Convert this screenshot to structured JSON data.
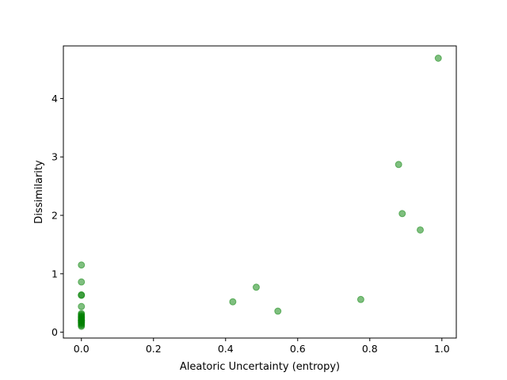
{
  "chart_data": {
    "type": "scatter",
    "title": "",
    "xlabel": "Aleatoric Uncertainty (entropy)",
    "ylabel": "Dissimilarity",
    "xlim": [
      -0.05,
      1.04
    ],
    "ylim": [
      -0.1,
      4.9
    ],
    "x_ticks": [
      0.0,
      0.2,
      0.4,
      0.6,
      0.8,
      1.0
    ],
    "x_tick_labels": [
      "0.0",
      "0.2",
      "0.4",
      "0.6",
      "0.8",
      "1.0"
    ],
    "y_ticks": [
      0,
      1,
      2,
      3,
      4
    ],
    "y_tick_labels": [
      "0",
      "1",
      "2",
      "3",
      "4"
    ],
    "grid": false,
    "marker_color": "#008000",
    "marker_alpha": 0.5,
    "series": [
      {
        "x": [
          0.0,
          0.0,
          0.0,
          0.0,
          0.0,
          0.0,
          0.0,
          0.0,
          0.0,
          0.0,
          0.0,
          0.0,
          0.0,
          0.0,
          0.0,
          0.0,
          0.0,
          0.0,
          0.0,
          0.42,
          0.485,
          0.545,
          0.775,
          0.88,
          0.89,
          0.94,
          0.99
        ],
        "y": [
          1.15,
          0.86,
          0.64,
          0.63,
          0.44,
          0.32,
          0.3,
          0.28,
          0.26,
          0.25,
          0.23,
          0.21,
          0.2,
          0.19,
          0.17,
          0.16,
          0.14,
          0.12,
          0.1,
          0.52,
          0.77,
          0.36,
          0.56,
          2.87,
          2.03,
          1.75,
          4.69
        ]
      }
    ]
  }
}
